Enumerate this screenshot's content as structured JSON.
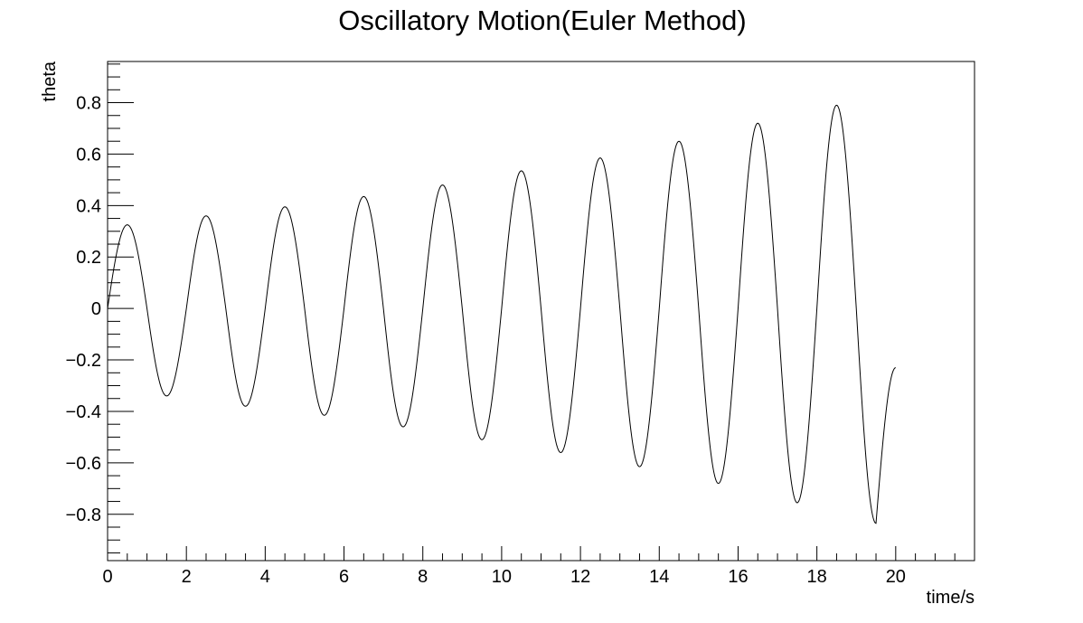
{
  "chart_data": {
    "type": "line",
    "title": "Oscillatory Motion(Euler Method)",
    "xlabel": "time/s",
    "ylabel": "theta",
    "xlim": [
      0,
      22
    ],
    "ylim": [
      -0.98,
      0.96
    ],
    "x_ticks": [
      0,
      2,
      4,
      6,
      8,
      10,
      12,
      14,
      16,
      18,
      20
    ],
    "x_tick_labels": [
      "0",
      "2",
      "4",
      "6",
      "8",
      "10",
      "12",
      "14",
      "16",
      "18",
      "20"
    ],
    "y_ticks": [
      -0.8,
      -0.6,
      -0.4,
      -0.2,
      0,
      0.2,
      0.4,
      0.6,
      0.8
    ],
    "y_tick_labels": [
      "−0.8",
      "−0.6",
      "−0.4",
      "−0.2",
      "0",
      "0.2",
      "0.4",
      "0.6",
      "0.8"
    ],
    "grid": false,
    "legend": "none",
    "series": [
      {
        "name": "theta",
        "model": "euler-growing-oscillation",
        "t_start": 0,
        "t_end": 20,
        "period": 2.0,
        "peaks": [
          {
            "t": 0.5,
            "theta": 0.325
          },
          {
            "t": 1.5,
            "theta": -0.34
          },
          {
            "t": 2.5,
            "theta": 0.36
          },
          {
            "t": 3.5,
            "theta": -0.38
          },
          {
            "t": 4.5,
            "theta": 0.395
          },
          {
            "t": 5.5,
            "theta": -0.415
          },
          {
            "t": 6.5,
            "theta": 0.435
          },
          {
            "t": 7.5,
            "theta": -0.46
          },
          {
            "t": 8.5,
            "theta": 0.48
          },
          {
            "t": 9.5,
            "theta": -0.51
          },
          {
            "t": 10.5,
            "theta": 0.535
          },
          {
            "t": 11.5,
            "theta": -0.56
          },
          {
            "t": 12.5,
            "theta": 0.585
          },
          {
            "t": 13.5,
            "theta": -0.615
          },
          {
            "t": 14.5,
            "theta": 0.65
          },
          {
            "t": 15.5,
            "theta": -0.68
          },
          {
            "t": 16.5,
            "theta": 0.72
          },
          {
            "t": 17.5,
            "theta": -0.755
          },
          {
            "t": 18.5,
            "theta": 0.79
          },
          {
            "t": 19.5,
            "theta": -0.835
          }
        ],
        "end_value": {
          "t": 20,
          "theta": -0.23
        }
      }
    ]
  }
}
